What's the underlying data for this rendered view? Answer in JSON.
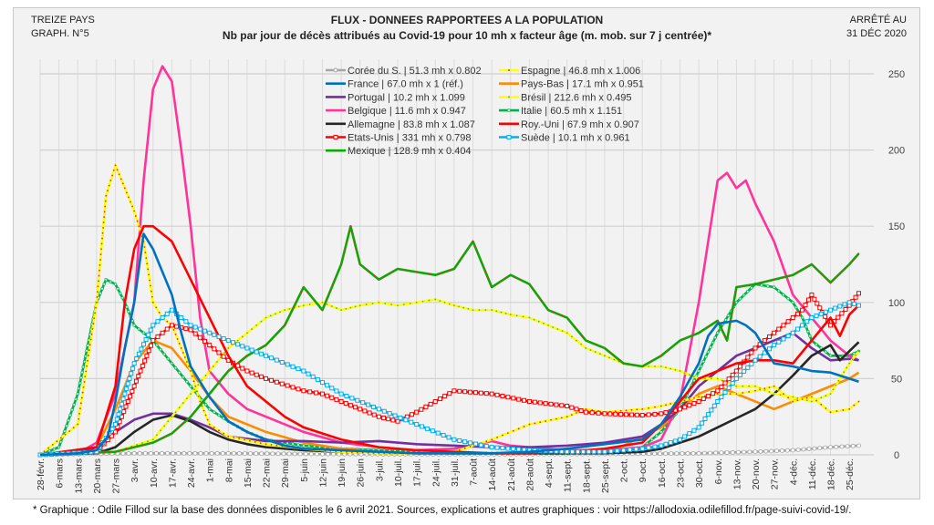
{
  "header": {
    "left_line1": "TREIZE PAYS",
    "left_line2": "GRAPH. N°5",
    "title_line1": "FLUX - DONNEES RAPPORTEES A LA POPULATION",
    "title_line2": "Nb par jour de décès attribués au Covid-19 pour 10 mh x facteur âge (m. mob. sur 7 j centrée)*",
    "right_line1": "ARRÊTÉ AU",
    "right_line2": "31 DÉC 2020"
  },
  "footer": "* Graphique : Odile Fillod sur la base des données  disponibles le 6 avril 2021. Sources, explications et autres graphiques : voir https://allodoxia.odilefillod.fr/page-suivi-covid-19/.",
  "chart_data": {
    "type": "line",
    "title": "FLUX - DONNEES RAPPORTEES A LA POPULATION",
    "subtitle": "Nb par jour de décès attribués au Covid-19 pour 10 mh x facteur âge (m. mob. sur 7 j centrée)*",
    "xlabel": "",
    "ylabel": "",
    "ylim": [
      0,
      260
    ],
    "yticks": [
      0,
      50,
      100,
      150,
      200,
      250
    ],
    "grid": true,
    "legend_placement": "top-center",
    "y_axis_side": "right",
    "x_note": "x = week index from 28-févr. (0) to 25-déc. (43)",
    "categories": [
      "28-févr.",
      "6-mars",
      "13-mars",
      "20-mars",
      "27-mars",
      "3-avr.",
      "10-avr.",
      "17-avr.",
      "24-avr.",
      "1-mai",
      "8-mai",
      "15-mai",
      "22-mai",
      "29-mai",
      "5-juin",
      "12-juin",
      "19-juin",
      "26-juin",
      "3-juil.",
      "10-juil.",
      "17-juil.",
      "24-juil.",
      "31-juil.",
      "7-août",
      "14-août",
      "21-août",
      "28-août",
      "4-sept.",
      "11-sept.",
      "18-sept.",
      "25-sept.",
      "2-oct.",
      "9-oct.",
      "16-oct.",
      "23-oct.",
      "30-oct.",
      "6-nov.",
      "13-nov.",
      "20-nov.",
      "27-nov.",
      "4-déc.",
      "11-déc.",
      "18-déc.",
      "25-déc."
    ],
    "series": [
      {
        "name": "Corée du S. | 51.3 mh x 0.802",
        "color": "#a6a6a6",
        "marker": "circle",
        "x": [
          0,
          5,
          10,
          15,
          20,
          25,
          30,
          35,
          38,
          40,
          42,
          43.5
        ],
        "y": [
          0,
          1,
          1,
          0.5,
          0.3,
          0.3,
          0.5,
          1,
          2,
          3,
          5,
          6
        ]
      },
      {
        "name": "France | 67.0 mh x 1 (réf.)",
        "color": "#0070c0",
        "marker": "none",
        "x": [
          0,
          2,
          3,
          3.6,
          4,
          4.5,
          5,
          5.5,
          6,
          6.5,
          7,
          7.5,
          8,
          9,
          10,
          11,
          12,
          13,
          14,
          16,
          18,
          20,
          22,
          24,
          26,
          28,
          30,
          32,
          33,
          34,
          35,
          35.5,
          36,
          37,
          37.5,
          38,
          39,
          40,
          41,
          42,
          43,
          43.5
        ],
        "y": [
          0,
          1,
          3,
          12,
          35,
          70,
          100,
          145,
          135,
          120,
          105,
          80,
          58,
          38,
          22,
          15,
          10,
          6,
          4,
          3,
          2,
          1,
          1,
          1,
          2,
          4,
          7,
          10,
          20,
          38,
          60,
          78,
          86,
          88,
          85,
          80,
          60,
          58,
          55,
          54,
          50,
          48
        ]
      },
      {
        "name": "Portugal | 10.2 mh x 1.099",
        "color": "#7030a0",
        "marker": "none",
        "x": [
          0,
          2,
          3,
          4,
          5,
          6,
          7,
          8,
          9,
          10,
          12,
          14,
          16,
          18,
          20,
          22,
          24,
          26,
          28,
          30,
          32,
          33,
          34,
          35,
          36,
          37,
          38,
          39,
          40,
          41,
          42,
          43,
          43.5
        ],
        "y": [
          0,
          1,
          5,
          15,
          23,
          27,
          27,
          23,
          18,
          12,
          9,
          9,
          8,
          9,
          7,
          6,
          5,
          5,
          6,
          8,
          12,
          20,
          30,
          45,
          55,
          65,
          70,
          75,
          80,
          70,
          62,
          63,
          62
        ]
      },
      {
        "name": "Belgique | 11.6 mh x 0.947",
        "color": "#ff3399",
        "marker": "none",
        "x": [
          0,
          2,
          3,
          4,
          5,
          5.5,
          6,
          6.5,
          7,
          7.5,
          8,
          8.5,
          9,
          10,
          11,
          12,
          13,
          14,
          16,
          18,
          20,
          22,
          24,
          25,
          26,
          28,
          30,
          32,
          33,
          34,
          35,
          35.5,
          36,
          36.5,
          37,
          37.5,
          38,
          39,
          40,
          41,
          42,
          43,
          43.5
        ],
        "y": [
          0,
          1,
          8,
          40,
          100,
          180,
          240,
          255,
          245,
          200,
          150,
          90,
          55,
          40,
          30,
          25,
          20,
          15,
          8,
          5,
          3,
          4,
          9,
          6,
          5,
          3,
          3,
          5,
          10,
          35,
          100,
          140,
          180,
          185,
          175,
          180,
          165,
          140,
          105,
          90,
          75,
          65,
          62
        ]
      },
      {
        "name": "Allemagne | 83.8 mh x 1.087",
        "color": "#262626",
        "marker": "none",
        "x": [
          0,
          3,
          4,
          5,
          6,
          7,
          8,
          9,
          10,
          11,
          12,
          14,
          16,
          18,
          20,
          22,
          24,
          26,
          28,
          30,
          32,
          33,
          34,
          35,
          36,
          37,
          38,
          39,
          40,
          41,
          42,
          42.5,
          43,
          43.5
        ],
        "y": [
          0,
          1,
          5,
          15,
          23,
          26,
          22,
          15,
          10,
          7,
          5,
          3,
          2,
          1,
          1,
          1,
          1,
          1,
          1,
          1,
          2,
          4,
          8,
          12,
          18,
          24,
          30,
          40,
          52,
          65,
          72,
          62,
          68,
          74
        ]
      },
      {
        "name": "Etats-Unis | 331 mh x 0.798",
        "color": "#ff0000",
        "marker": "square-open",
        "x": [
          0,
          3,
          4,
          5,
          6,
          7,
          8,
          9,
          10,
          11,
          12,
          14,
          15,
          16,
          17,
          18,
          19,
          20,
          21,
          22,
          24,
          26,
          28,
          29,
          30,
          32,
          33,
          34,
          35,
          36,
          37,
          38,
          39,
          40,
          40.5,
          41,
          42,
          43,
          43.5
        ],
        "y": [
          0,
          2,
          15,
          45,
          75,
          85,
          82,
          72,
          62,
          55,
          50,
          42,
          40,
          35,
          30,
          25,
          22,
          28,
          35,
          42,
          40,
          35,
          32,
          28,
          27,
          26,
          27,
          30,
          35,
          42,
          55,
          70,
          80,
          90,
          95,
          105,
          85,
          98,
          106
        ]
      },
      {
        "name": "Mexique | 128.9 mh x 0.404",
        "color": "#00b000",
        "marker": "dot-red",
        "x": [
          0,
          4,
          6,
          7,
          8,
          9,
          10,
          11,
          12,
          13,
          14,
          15,
          16,
          16.5,
          17,
          18,
          19,
          20,
          21,
          22,
          23,
          24,
          25,
          26,
          27,
          28,
          29,
          30,
          31,
          32,
          33,
          34,
          35,
          36,
          36.5,
          37,
          38,
          39,
          40,
          41,
          42,
          43,
          43.5
        ],
        "y": [
          0,
          2,
          8,
          14,
          25,
          40,
          55,
          65,
          72,
          85,
          110,
          95,
          125,
          150,
          125,
          115,
          122,
          120,
          118,
          122,
          140,
          110,
          118,
          112,
          95,
          90,
          75,
          70,
          60,
          58,
          65,
          75,
          80,
          88,
          75,
          110,
          112,
          115,
          118,
          125,
          113,
          125,
          132
        ]
      },
      {
        "name": "Espagne | 46.8 mh x 1.006",
        "color": "#ffff00",
        "marker": "dot-red",
        "x": [
          0,
          2,
          3,
          3.5,
          4,
          4.5,
          5,
          5.5,
          6,
          6.5,
          7,
          7.5,
          8,
          8.5,
          9,
          10,
          12,
          14,
          16,
          18,
          20,
          22,
          24,
          26,
          28,
          29,
          30,
          32,
          33,
          34,
          35,
          36,
          37,
          38,
          39,
          40,
          41,
          42,
          43,
          43.5
        ],
        "y": [
          0,
          20,
          100,
          170,
          190,
          175,
          160,
          140,
          100,
          90,
          85,
          70,
          55,
          35,
          20,
          12,
          7,
          4,
          2,
          1,
          1,
          2,
          10,
          20,
          25,
          30,
          28,
          30,
          32,
          35,
          38,
          40,
          40,
          42,
          45,
          35,
          38,
          28,
          30,
          35
        ]
      },
      {
        "name": "Pays-Bas | 17.1 mh x 0.951",
        "color": "#ff8c00",
        "marker": "none",
        "x": [
          0,
          3,
          4,
          5,
          6,
          7,
          8,
          9,
          10,
          12,
          14,
          16,
          18,
          20,
          22,
          24,
          26,
          28,
          30,
          31,
          32,
          33,
          34,
          35,
          36,
          37,
          38,
          39,
          40,
          41,
          42,
          43,
          43.5
        ],
        "y": [
          0,
          5,
          30,
          60,
          75,
          70,
          55,
          38,
          25,
          15,
          8,
          4,
          2,
          1,
          1,
          1,
          1,
          2,
          3,
          6,
          12,
          18,
          30,
          40,
          45,
          40,
          35,
          30,
          35,
          40,
          45,
          50,
          54
        ]
      },
      {
        "name": "Brésil | 212.6 mh x 0.495",
        "color": "#ffff00",
        "marker": "dot-green",
        "x": [
          0,
          4,
          6,
          7,
          8,
          9,
          10,
          11,
          12,
          13,
          14,
          15,
          16,
          17,
          18,
          19,
          20,
          21,
          22,
          23,
          24,
          25,
          26,
          27,
          28,
          29,
          30,
          31,
          32,
          33,
          34,
          35,
          36,
          37,
          38,
          39,
          40,
          41,
          42,
          43,
          43.5
        ],
        "y": [
          0,
          2,
          10,
          25,
          40,
          55,
          70,
          80,
          90,
          95,
          98,
          100,
          95,
          98,
          100,
          98,
          100,
          102,
          98,
          95,
          95,
          92,
          90,
          85,
          80,
          70,
          65,
          60,
          58,
          58,
          55,
          50,
          50,
          45,
          45,
          40,
          38,
          35,
          40,
          60,
          68
        ]
      },
      {
        "name": "Italie | 60.5 mh x 1.151",
        "color": "#00b050",
        "marker": "triangle",
        "x": [
          0,
          1,
          2,
          3,
          3.5,
          4,
          4.5,
          5,
          6,
          7,
          8,
          9,
          10,
          11,
          12,
          14,
          16,
          18,
          20,
          22,
          24,
          26,
          28,
          30,
          32,
          33,
          34,
          35,
          36,
          37,
          38,
          39,
          40,
          40.5,
          41,
          42,
          43,
          43.5
        ],
        "y": [
          0,
          5,
          40,
          100,
          115,
          112,
          100,
          85,
          75,
          60,
          45,
          30,
          22,
          15,
          10,
          6,
          4,
          3,
          2,
          1,
          1,
          1,
          1,
          2,
          5,
          15,
          30,
          55,
          80,
          100,
          112,
          110,
          100,
          90,
          75,
          65,
          65,
          68
        ]
      },
      {
        "name": "Roy.-Uni | 67.9 mh x 0.907",
        "color": "#ff0000",
        "marker": "none",
        "x": [
          0,
          3,
          4,
          4.5,
          5,
          5.5,
          6,
          6.5,
          7,
          8,
          9,
          10,
          11,
          12,
          13,
          14,
          16,
          18,
          20,
          22,
          24,
          26,
          28,
          30,
          32,
          33,
          34,
          35,
          36,
          37,
          38,
          39,
          40,
          41,
          42,
          42.5,
          43,
          43.5
        ],
        "y": [
          0,
          5,
          45,
          100,
          135,
          150,
          150,
          145,
          140,
          115,
          90,
          65,
          45,
          35,
          25,
          18,
          10,
          5,
          3,
          2,
          1,
          1,
          2,
          4,
          8,
          20,
          35,
          50,
          55,
          60,
          62,
          62,
          60,
          75,
          90,
          78,
          92,
          98
        ]
      },
      {
        "name": "Suède | 10.1 mh x 0.961",
        "color": "#00b0f0",
        "marker": "square-open",
        "x": [
          0,
          3,
          4,
          5,
          6,
          7,
          8,
          9,
          10,
          11,
          12,
          14,
          16,
          18,
          20,
          22,
          24,
          26,
          28,
          30,
          31,
          32,
          33,
          34,
          35,
          36,
          37,
          38,
          39,
          40,
          41,
          42,
          43,
          43.5
        ],
        "y": [
          0,
          2,
          20,
          60,
          85,
          95,
          85,
          80,
          75,
          70,
          65,
          55,
          40,
          30,
          20,
          10,
          5,
          3,
          2,
          2,
          3,
          4,
          6,
          10,
          18,
          35,
          50,
          62,
          72,
          80,
          90,
          95,
          100,
          98
        ]
      }
    ]
  }
}
